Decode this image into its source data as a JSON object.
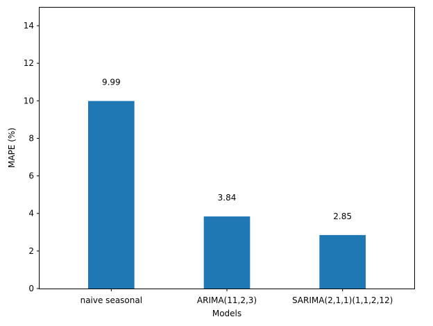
{
  "chart_data": {
    "type": "bar",
    "categories": [
      "naive seasonal",
      "ARIMA(11,2,3)",
      "SARIMA(2,1,1)(1,1,2,12)"
    ],
    "values": [
      9.99,
      3.84,
      2.85
    ],
    "data_labels": [
      "9.99",
      "3.84",
      "2.85"
    ],
    "title": "",
    "xlabel": "Models",
    "ylabel": "MAPE (%)",
    "ylim": [
      0,
      15
    ],
    "yticks": [
      0,
      2,
      4,
      6,
      8,
      10,
      12,
      14
    ],
    "ytick_labels": [
      "0",
      "2",
      "4",
      "6",
      "8",
      "10",
      "12",
      "14"
    ],
    "bar_color": "#1f77b4",
    "grid": false,
    "label_offset": 1
  }
}
